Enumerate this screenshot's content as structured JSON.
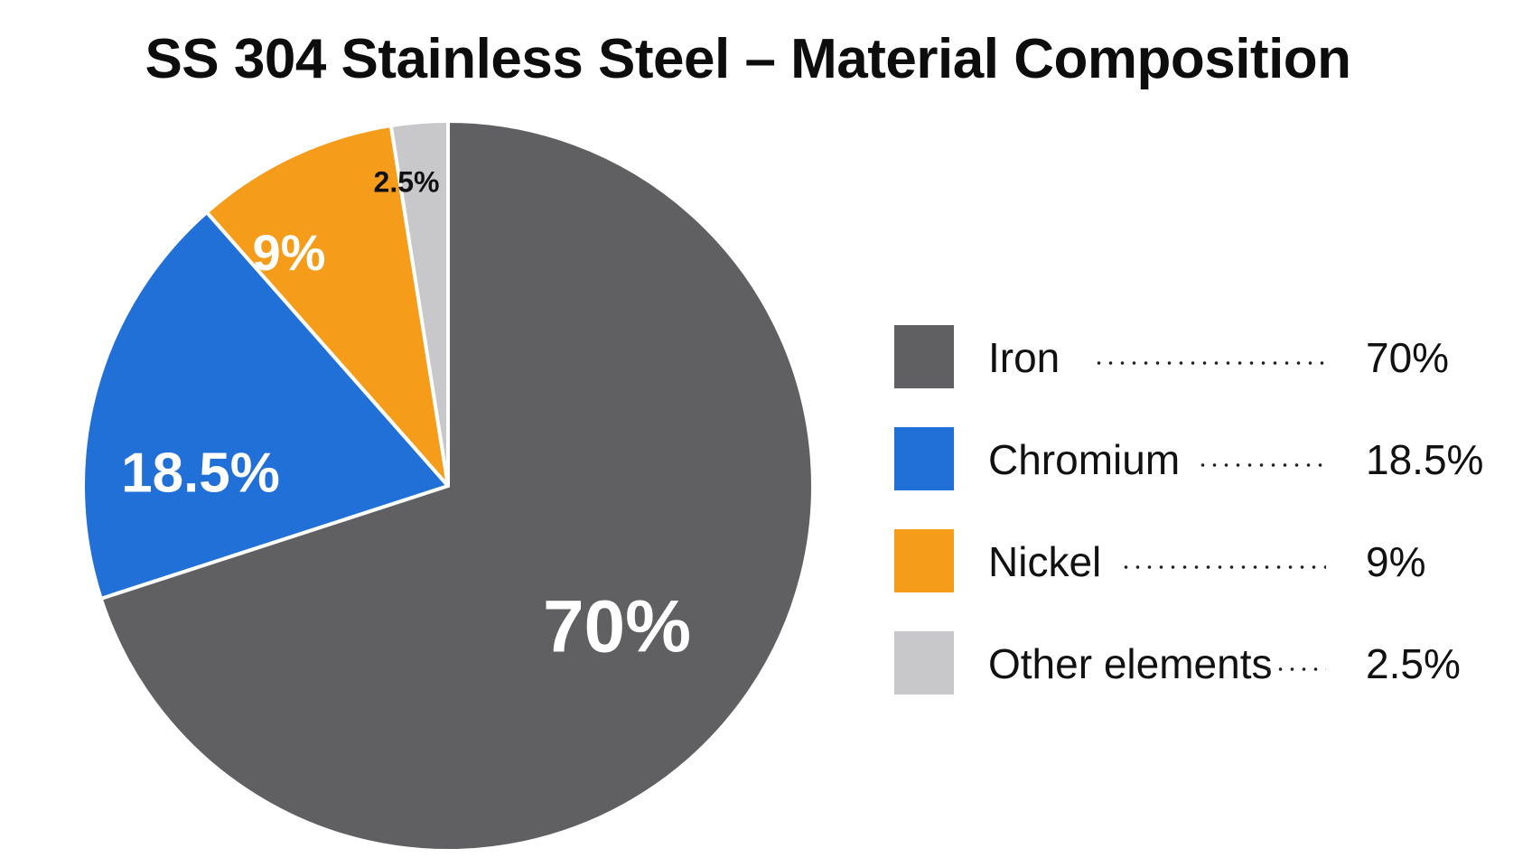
{
  "chart_data": {
    "type": "pie",
    "title": "SS 304 Stainless Steel – Material Composition",
    "legend_position": "right",
    "slices": [
      {
        "name": "Iron",
        "value": 70,
        "label": "70%",
        "color": "#606062",
        "label_color": "#ffffff"
      },
      {
        "name": "Chromium",
        "value": 18.5,
        "label": "18.5%",
        "color": "#2170d8",
        "label_color": "#ffffff"
      },
      {
        "name": "Nickel",
        "value": 9,
        "label": "9%",
        "color": "#f59c1a",
        "label_color": "#ffffff"
      },
      {
        "name": "Other elements",
        "value": 2.5,
        "label": "2.5%",
        "color": "#c8c8ca",
        "label_color": "#111111"
      }
    ]
  }
}
